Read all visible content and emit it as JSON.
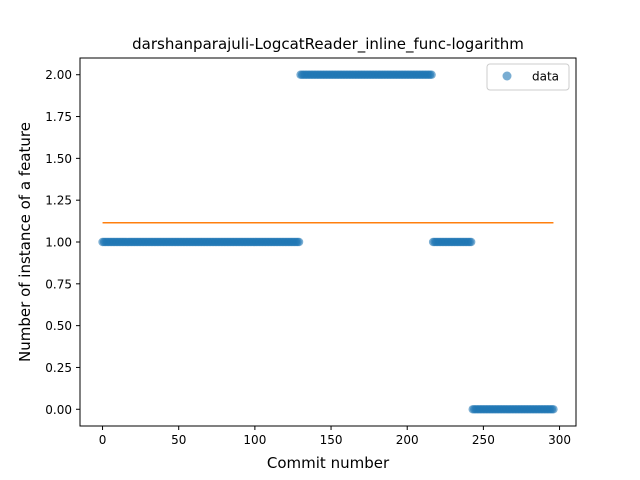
{
  "chart_data": {
    "type": "scatter",
    "title": "darshanparajuli-LogcatReader_inline_func-logarithm",
    "xlabel": "Commit number",
    "ylabel": "Number of instance of a feature",
    "xlim": [
      -14.8,
      310.8
    ],
    "ylim": [
      -0.1,
      2.1
    ],
    "xticks": [
      0,
      50,
      100,
      150,
      200,
      250,
      300
    ],
    "yticks": [
      0.0,
      0.25,
      0.5,
      0.75,
      1.0,
      1.25,
      1.5,
      1.75,
      2.0
    ],
    "xtick_labels": [
      "0",
      "50",
      "100",
      "150",
      "200",
      "250",
      "300"
    ],
    "ytick_labels": [
      "0.00",
      "0.25",
      "0.50",
      "0.75",
      "1.00",
      "1.25",
      "1.50",
      "1.75",
      "2.00"
    ],
    "grid": false,
    "legend": {
      "position": "top-right",
      "entries": [
        "data"
      ]
    },
    "series": [
      {
        "name": "data",
        "kind": "scatter",
        "color": "#1f77b4",
        "alpha": 0.6,
        "segments": [
          {
            "x_start": 0,
            "x_end": 129,
            "y": 1
          },
          {
            "x_start": 130,
            "x_end": 216,
            "y": 2
          },
          {
            "x_start": 217,
            "x_end": 242,
            "y": 1
          },
          {
            "x_start": 243,
            "x_end": 296,
            "y": 0
          }
        ]
      },
      {
        "kind": "line",
        "color": "#ff7f0e",
        "x": [
          0,
          296
        ],
        "y": [
          1.115,
          1.115
        ]
      }
    ]
  }
}
